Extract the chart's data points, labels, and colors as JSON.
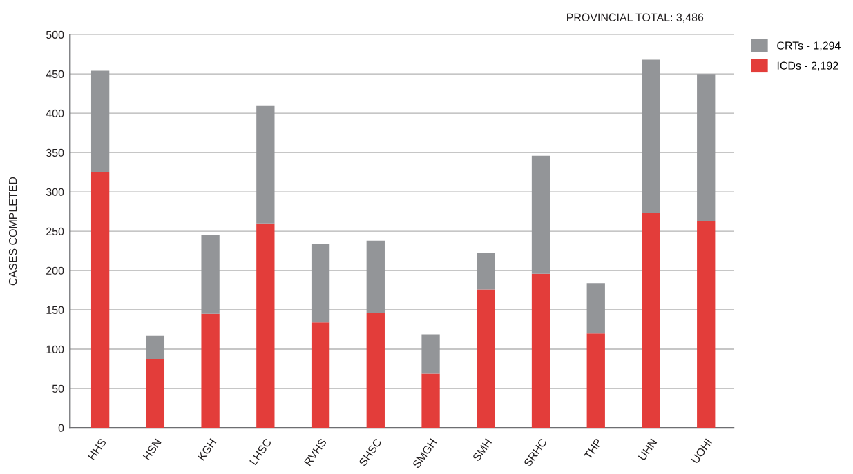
{
  "chart_data": {
    "type": "bar",
    "title": "PROVINCIAL TOTAL: 3,486",
    "ylabel": "CASES COMPLETED",
    "categories": [
      "HHS",
      "HSN",
      "KGH",
      "LHSC",
      "RVHS",
      "SHSC",
      "SMGH",
      "SMH",
      "SRHC",
      "THP",
      "UHN",
      "UOHI"
    ],
    "series": [
      {
        "name": "ICDs - 2,192",
        "color": "#e33d3a",
        "values": [
          325,
          87,
          145,
          260,
          134,
          146,
          69,
          176,
          196,
          120,
          273,
          263
        ]
      },
      {
        "name": "CRTs - 1,294",
        "color": "#939598",
        "values": [
          129,
          30,
          100,
          150,
          100,
          92,
          50,
          46,
          150,
          64,
          195,
          187
        ]
      }
    ],
    "stacked": true,
    "ylim": [
      0,
      500
    ],
    "yticks": [
      0,
      50,
      100,
      150,
      200,
      250,
      300,
      350,
      400,
      450,
      500
    ],
    "grid": "y",
    "legend": "top right"
  }
}
